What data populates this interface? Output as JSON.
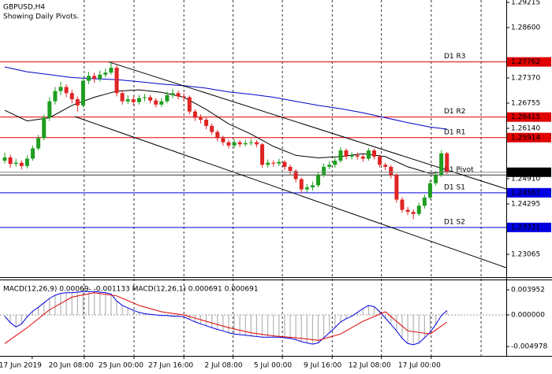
{
  "chart_data": [
    {
      "type": "candlestick",
      "title": "GBPUSD,H4",
      "subtitle": "Showing Daily Pivots.",
      "xlim": [
        -0.85,
        89.6
      ],
      "ylim": [
        1.22507,
        1.29273
      ],
      "yticks": [
        1.29215,
        {
          "value": 1.286,
          "label": "1.28600"
        },
        {
          "value": 1.2737,
          "label": "1.27370"
        },
        1.26755,
        {
          "value": 1.2614,
          "label": "1.26140"
        },
        {
          "value": 1.2491,
          "label": "1.24910"
        },
        1.24295,
        1.23065
      ],
      "xticks": [
        {
          "value": 4.9,
          "label": "17 Jun 2019"
        },
        {
          "value": 14.2,
          "label": "20 Jun 08:00"
        },
        {
          "value": 23.1,
          "label": "25 Jun 00:00"
        },
        {
          "value": 32.0,
          "label": "27 Jun 16:00"
        },
        {
          "value": 40.8,
          "label": "2 Jul 08:00"
        },
        {
          "value": 49.6,
          "label": "5 Jul 00:00"
        },
        {
          "value": 58.5,
          "label": "9 Jul 16:00"
        },
        {
          "value": 67.3,
          "label": "12 Jul 08:00"
        },
        {
          "value": 76.2,
          "label": "17 Jul 00:00"
        }
      ],
      "xgrid": [
        14.2,
        23.1,
        32.0,
        40.8,
        49.6,
        58.5,
        67.3,
        76.2,
        85.1
      ],
      "up_color": "#1f9e1f",
      "down_color": "#e02424",
      "open": [
        1.2535,
        1.2543,
        1.2527,
        1.253,
        1.2522,
        1.254,
        1.2565,
        1.259,
        1.264,
        1.268,
        1.2705,
        1.2715,
        1.27,
        1.2685,
        1.267,
        1.273,
        1.2742,
        1.2735,
        1.2745,
        1.275,
        1.2762,
        1.27,
        1.268,
        1.2685,
        1.2678,
        1.2688,
        1.269,
        1.2682,
        1.2672,
        1.268,
        1.2695,
        1.27,
        1.2692,
        1.269,
        1.2655,
        1.264,
        1.2635,
        1.262,
        1.2605,
        1.259,
        1.258,
        1.2572,
        1.258,
        1.2575,
        1.2578,
        1.258,
        1.2575,
        1.2525,
        1.253,
        1.2528,
        1.2532,
        1.252,
        1.251,
        1.249,
        1.2465,
        1.247,
        1.2475,
        1.25,
        1.252,
        1.2525,
        1.2535,
        1.256,
        1.2545,
        1.2548,
        1.2545,
        1.254,
        1.256,
        1.2545,
        1.2525,
        1.252,
        1.25,
        1.244,
        1.2415,
        1.241,
        1.2405,
        1.2425,
        1.2445,
        1.248,
        1.25,
        1.2553
      ],
      "high": [
        1.2555,
        1.255,
        1.254,
        1.2536,
        1.2548,
        1.2572,
        1.2598,
        1.2648,
        1.269,
        1.2715,
        1.2728,
        1.2722,
        1.2708,
        1.2692,
        1.2738,
        1.2752,
        1.275,
        1.2755,
        1.276,
        1.2776,
        1.2768,
        1.2708,
        1.2695,
        1.2692,
        1.2696,
        1.2698,
        1.2695,
        1.2688,
        1.2688,
        1.2704,
        1.271,
        1.2706,
        1.27,
        1.2694,
        1.266,
        1.2648,
        1.264,
        1.2626,
        1.261,
        1.2596,
        1.2586,
        1.2588,
        1.2585,
        1.2586,
        1.2588,
        1.2585,
        1.2578,
        1.2538,
        1.2536,
        1.254,
        1.2536,
        1.2525,
        1.2514,
        1.2494,
        1.2478,
        1.2484,
        1.2508,
        1.2528,
        1.2534,
        1.2542,
        1.2568,
        1.2565,
        1.2556,
        1.2555,
        1.255,
        1.2566,
        1.2564,
        1.255,
        1.253,
        1.2524,
        1.2504,
        1.2446,
        1.2422,
        1.2416,
        1.2432,
        1.2452,
        1.2488,
        1.251,
        1.256,
        1.2556
      ],
      "low": [
        1.2528,
        1.2518,
        1.252,
        1.2514,
        1.2516,
        1.2535,
        1.256,
        1.2585,
        1.2632,
        1.2672,
        1.2695,
        1.269,
        1.2675,
        1.2655,
        1.2665,
        1.2722,
        1.2725,
        1.2728,
        1.2738,
        1.2745,
        1.2692,
        1.2672,
        1.2674,
        1.267,
        1.2672,
        1.268,
        1.2675,
        1.2665,
        1.2666,
        1.2675,
        1.2688,
        1.2685,
        1.268,
        1.2648,
        1.2632,
        1.2626,
        1.2612,
        1.2598,
        1.2582,
        1.2572,
        1.2565,
        1.2566,
        1.2568,
        1.257,
        1.2572,
        1.2568,
        1.2518,
        1.2518,
        1.252,
        1.2522,
        1.2512,
        1.2502,
        1.2482,
        1.2455,
        1.2458,
        1.2462,
        1.247,
        1.2495,
        1.2514,
        1.2518,
        1.253,
        1.2538,
        1.2538,
        1.2538,
        1.2532,
        1.2535,
        1.2538,
        1.2518,
        1.2512,
        1.2492,
        1.2432,
        1.2408,
        1.2402,
        1.2392,
        1.24,
        1.2418,
        1.244,
        1.2474,
        1.2495,
        1.2502
      ],
      "close": [
        1.2543,
        1.2527,
        1.253,
        1.2522,
        1.254,
        1.2565,
        1.259,
        1.264,
        1.268,
        1.2705,
        1.2715,
        1.27,
        1.2685,
        1.267,
        1.273,
        1.2742,
        1.2735,
        1.2745,
        1.275,
        1.2762,
        1.27,
        1.268,
        1.2685,
        1.2678,
        1.2688,
        1.269,
        1.2682,
        1.2672,
        1.268,
        1.2695,
        1.27,
        1.2692,
        1.269,
        1.2655,
        1.264,
        1.2635,
        1.262,
        1.2605,
        1.259,
        1.258,
        1.2572,
        1.258,
        1.2575,
        1.2578,
        1.258,
        1.2575,
        1.2525,
        1.253,
        1.2528,
        1.2532,
        1.252,
        1.251,
        1.249,
        1.2465,
        1.247,
        1.2475,
        1.25,
        1.252,
        1.2525,
        1.2535,
        1.256,
        1.2545,
        1.2548,
        1.2545,
        1.254,
        1.256,
        1.2545,
        1.2525,
        1.252,
        1.25,
        1.244,
        1.2415,
        1.241,
        1.2405,
        1.2425,
        1.2445,
        1.248,
        1.25,
        1.2553,
        1.25068
      ],
      "ma_x": [
        0,
        4,
        8,
        12,
        16,
        20,
        24,
        28,
        32,
        36,
        40,
        44,
        48,
        52,
        56,
        60,
        64,
        68,
        72,
        76,
        79
      ],
      "moving_averages": [
        {
          "color": "#0000cc",
          "values": [
            1.2764,
            1.2752,
            1.2745,
            1.2738,
            1.2735,
            1.2733,
            1.2728,
            1.2722,
            1.2718,
            1.2712,
            1.2703,
            1.2697,
            1.269,
            1.268,
            1.267,
            1.2662,
            1.2652,
            1.264,
            1.2628,
            1.2617,
            1.2612
          ]
        },
        {
          "color": "#000000",
          "values": [
            1.2658,
            1.2632,
            1.264,
            1.267,
            1.269,
            1.2705,
            1.2708,
            1.2702,
            1.269,
            1.266,
            1.2625,
            1.26,
            1.257,
            1.2548,
            1.2542,
            1.2545,
            1.2552,
            1.2545,
            1.252,
            1.2504,
            1.2508
          ]
        }
      ],
      "trendlines": [
        {
          "x": [
            18.6,
            89.6
          ],
          "values": [
            1.2776,
            1.2466
          ]
        },
        {
          "x": [
            12.5,
            89.6
          ],
          "values": [
            1.26428,
            1.22738
          ]
        }
      ],
      "pivots": [
        {
          "name": "D1 R3",
          "value": 1.27762,
          "color": "#e00000"
        },
        {
          "name": "D1 R2",
          "value": 1.26415,
          "color": "#e00000"
        },
        {
          "name": "D1 R1",
          "value": 1.25914,
          "color": "#e00000"
        },
        {
          "name": "D1 Pivot",
          "value": 1.25,
          "color": "#303030",
          "axis_label": false
        },
        {
          "name": "D1 S1",
          "value": 1.24567,
          "color": "#0000e0"
        },
        {
          "name": "D1 S2",
          "value": 1.23721,
          "color": "#0000e0"
        }
      ],
      "price_line_color": "#000000"
    },
    {
      "type": "macd",
      "title": "MACD(12,26,9) 0.00069‑ -0.001133 MACD(12,26,1) 0.000691 0.000691",
      "xlim": [
        -0.85,
        89.6
      ],
      "ylim": [
        -0.00645,
        0.00558
      ],
      "yticks": [
        0.003952,
        {
          "value": 0,
          "label": "0.000000"
        },
        -0.004978
      ],
      "histogram": {
        "color": "#b4b4b4",
        "line_color": "#0000dd",
        "values": [
          -0.0002,
          -0.0012,
          -0.0019,
          -0.0014,
          -0.0003,
          0.0006,
          0.0012,
          0.0019,
          0.0026,
          0.0031,
          0.0034,
          0.0035,
          0.0035,
          0.0036,
          0.0037,
          0.0037,
          0.0037,
          0.0036,
          0.0035,
          0.0033,
          0.0022,
          0.0015,
          0.0011,
          0.0007,
          0.0004,
          0.0002,
          0.0001,
          0.0,
          -0.0001,
          -0.0001,
          -0.0002,
          -0.0002,
          -0.0003,
          -0.0007,
          -0.0011,
          -0.0014,
          -0.0017,
          -0.002,
          -0.0023,
          -0.0025,
          -0.0028,
          -0.003,
          -0.0031,
          -0.0032,
          -0.0033,
          -0.0034,
          -0.0035,
          -0.0035,
          -0.0035,
          -0.0035,
          -0.0036,
          -0.0037,
          -0.0039,
          -0.0042,
          -0.0044,
          -0.0046,
          -0.0044,
          -0.0036,
          -0.0028,
          -0.002,
          -0.0011,
          -0.0006,
          -0.0002,
          0.0004,
          0.001,
          0.0015,
          0.0013,
          0.0005,
          -0.0005,
          -0.0015,
          -0.0025,
          -0.0037,
          -0.0045,
          -0.0047,
          -0.0044,
          -0.0036,
          -0.0027,
          -0.0015,
          -0.0001,
          0.000691
        ]
      },
      "signal": {
        "color": "#e00000",
        "x": [
          0,
          4,
          8,
          12,
          16,
          20,
          24,
          28,
          32,
          36,
          40,
          44,
          48,
          52,
          56,
          60,
          64,
          68,
          72,
          76,
          79
        ],
        "values": [
          -0.0045,
          -0.002,
          0.0008,
          0.0028,
          0.0035,
          0.003,
          0.0015,
          0.0005,
          0.0,
          -0.001,
          -0.002,
          -0.0028,
          -0.0033,
          -0.0036,
          -0.004,
          -0.003,
          -0.001,
          0.0005,
          -0.0025,
          -0.003,
          -0.001133
        ]
      }
    }
  ]
}
